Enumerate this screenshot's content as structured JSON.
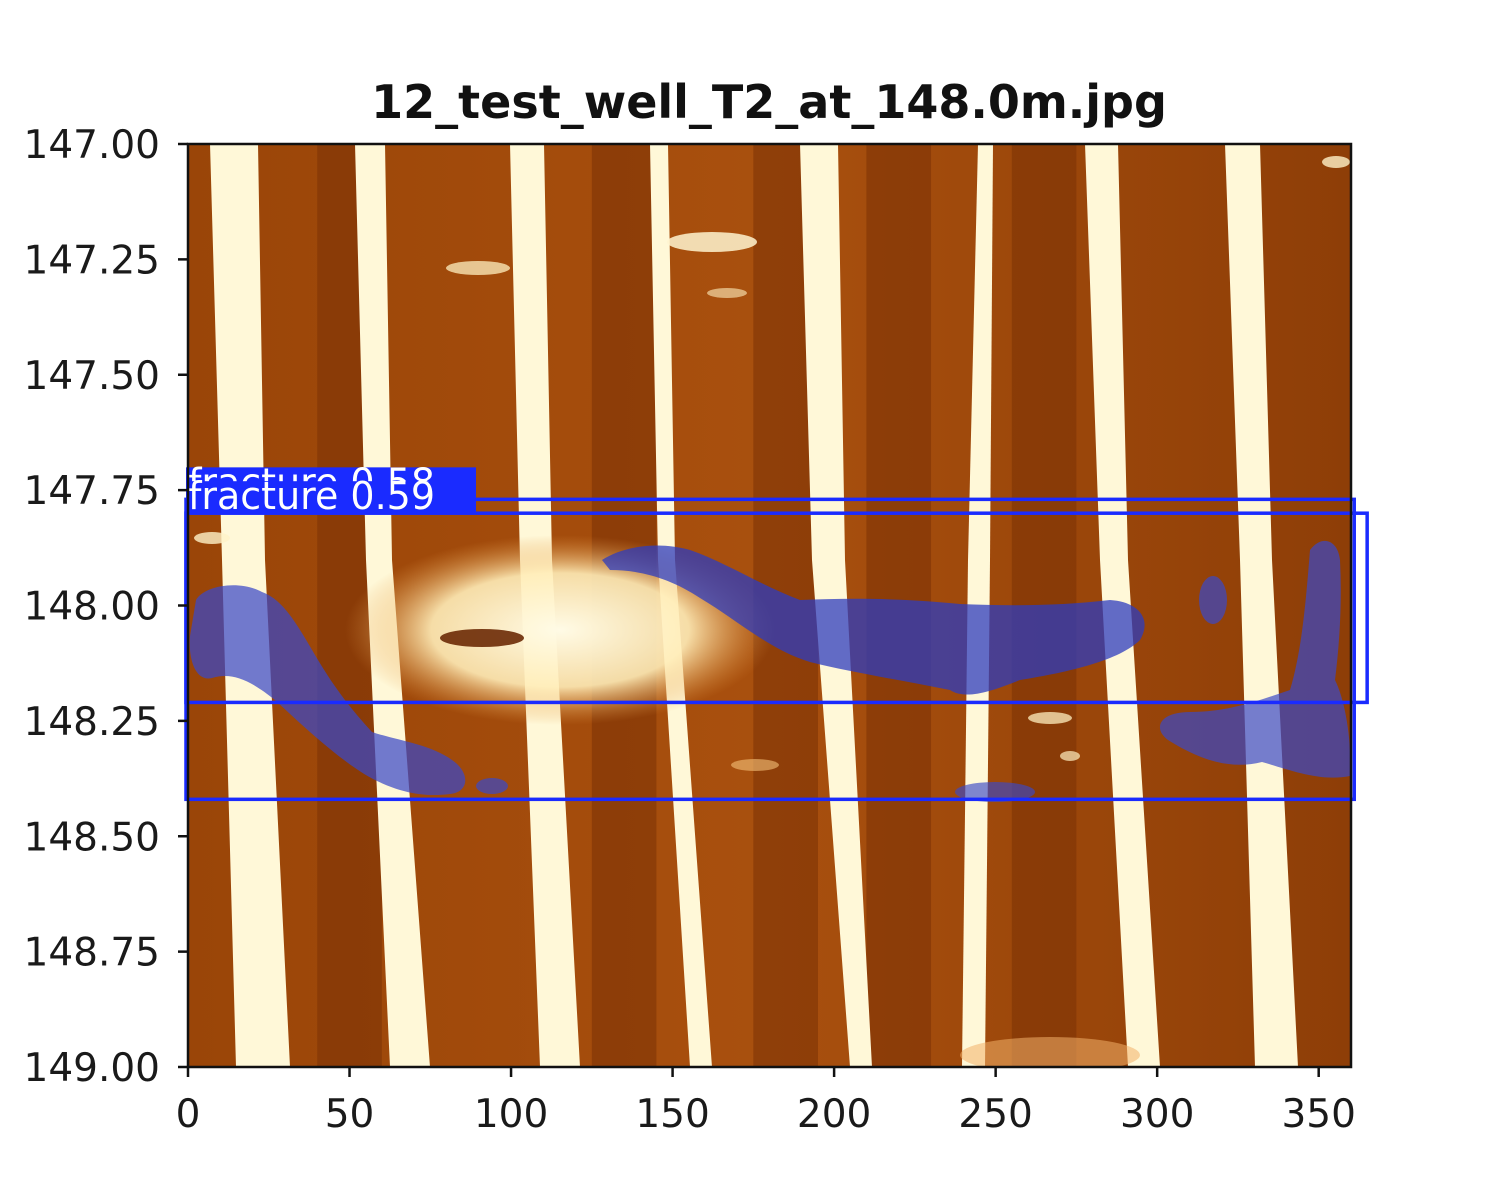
{
  "chart_data": {
    "type": "heatmap",
    "title": "12_test_well_T2_at_148.0m.jpg",
    "xlabel": "",
    "ylabel": "",
    "xlim": [
      0,
      360
    ],
    "ylim": [
      149.0,
      147.0
    ],
    "x_ticks": [
      0,
      50,
      100,
      150,
      200,
      250,
      300,
      350
    ],
    "x_tick_labels": [
      "0",
      "50",
      "100",
      "150",
      "200",
      "250",
      "300",
      "350"
    ],
    "y_ticks": [
      147.0,
      147.25,
      147.5,
      147.75,
      148.0,
      148.25,
      148.5,
      148.75,
      149.0
    ],
    "y_tick_labels": [
      "147.00",
      "147.25",
      "147.50",
      "147.75",
      "148.00",
      "148.25",
      "148.50",
      "148.75",
      "149.00"
    ],
    "grid": false,
    "colormap": "copper-to-cream borehole image",
    "detections": [
      {
        "label": "fracture 0.58",
        "class": "fracture",
        "score": 0.58,
        "x_range": [
          0,
          361
        ],
        "depth_range": [
          147.77,
          148.42
        ]
      },
      {
        "label": "fracture 0.59",
        "class": "fracture",
        "score": 0.59,
        "x_range": [
          0,
          365
        ],
        "depth_range": [
          147.8,
          148.21
        ]
      }
    ],
    "colors": {
      "background_dark": "#8a3a06",
      "background_mid": "#b55a14",
      "stripe_light": "#fff7d6",
      "mask_fill": "#3340c0",
      "box_stroke": "#1a2bff"
    }
  }
}
